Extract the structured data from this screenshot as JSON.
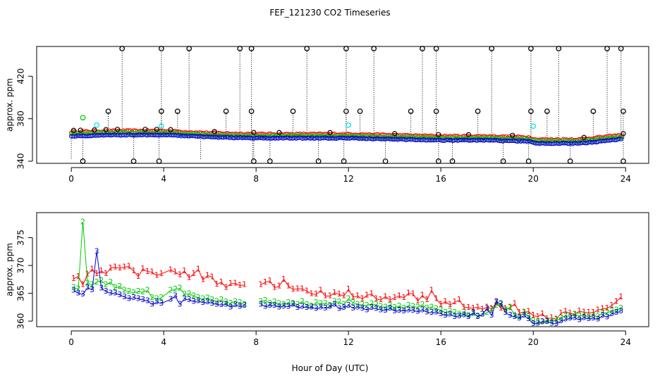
{
  "title": "FEF_121230  CO2 Timeseries",
  "xlabel": "Hour of Day (UTC)",
  "colors": {
    "black": "#000000",
    "red": "#ff0000",
    "green": "#00cc00",
    "blue": "#0000cc",
    "cyan": "#00e5e5",
    "axis": "#000000"
  },
  "chart_data": [
    {
      "type": "scatter",
      "ylabel": "approx. ppm",
      "xlim": [
        -1.5,
        25
      ],
      "ylim": [
        338,
        448
      ],
      "xticks": [
        0,
        4,
        8,
        12,
        16,
        20,
        24
      ],
      "yticks": [
        340,
        380,
        420
      ],
      "ytick_labels": [
        "340",
        "380",
        "420"
      ],
      "black_high_x": [
        2.2,
        3.9,
        5.1,
        7.3,
        7.8,
        10.2,
        11.9,
        13.1,
        15.2,
        15.8,
        18.2,
        19.9,
        21.1,
        23.2,
        23.8
      ],
      "black_mid_x": [
        1.6,
        3.9,
        4.6,
        6.7,
        7.8,
        9.6,
        11.9,
        12.5,
        14.7,
        15.8,
        17.6,
        19.9,
        20.6,
        22.6,
        23.9
      ],
      "black_low_x": [
        0.5,
        2.7,
        3.8,
        7.9,
        8.6,
        10.7,
        11.8,
        13.6,
        15.9,
        16.5,
        18.7,
        19.8,
        21.6,
        23.9
      ],
      "cyan_points": [
        [
          1.1,
          374
        ],
        [
          3.9,
          373
        ],
        [
          12.0,
          374
        ],
        [
          20.0,
          373
        ]
      ],
      "green_points": [
        [
          0.5,
          381
        ]
      ],
      "baseline": {
        "x": [
          0,
          2,
          4,
          6,
          8,
          10,
          12,
          14,
          16,
          18,
          19.8,
          20.1,
          22,
          23.8
        ],
        "y": [
          365,
          366,
          366,
          364,
          363,
          363,
          363,
          362,
          361,
          361,
          360,
          358,
          358,
          362
        ]
      }
    },
    {
      "type": "line",
      "ylabel": "approx. ppm",
      "xlim": [
        -1.5,
        25
      ],
      "ylim": [
        359,
        379.5
      ],
      "xticks": [
        0,
        4,
        8,
        12,
        16,
        20,
        24
      ],
      "yticks": [
        360,
        365,
        370,
        375
      ],
      "ytick_labels": [
        "360",
        "365",
        "370",
        "375"
      ],
      "series": [
        {
          "name": "1",
          "x": [
            0.1,
            0.3,
            0.5,
            0.7,
            0.9,
            1.1,
            1.3,
            1.5,
            1.7,
            1.9,
            2.1,
            2.3,
            2.5,
            2.7,
            2.9,
            3.1,
            3.3,
            3.5,
            3.7,
            3.9,
            4.3,
            4.5,
            4.7,
            4.9,
            5.1,
            5.3,
            5.5,
            5.7,
            5.9,
            6.1,
            6.3,
            6.5,
            6.7,
            6.9,
            7.1,
            7.3,
            7.5,
            8.2,
            8.4,
            8.6,
            8.8,
            9.0,
            9.2,
            9.4,
            9.6,
            9.8,
            10.0,
            10.2,
            10.4,
            10.6,
            10.8,
            11.0,
            11.2,
            11.4,
            11.6,
            11.8,
            12.0,
            12.2,
            12.4,
            12.6,
            12.8,
            13.0,
            13.2,
            13.4,
            13.6,
            13.8,
            14.0,
            14.2,
            14.4,
            14.6,
            14.8,
            15.0,
            15.2,
            15.4,
            15.6,
            15.8,
            16.0,
            16.2,
            16.4,
            16.6,
            16.8,
            17.0,
            17.2,
            17.4,
            17.6,
            17.8,
            18.0,
            18.2,
            18.4,
            18.6,
            18.8,
            19.0,
            19.2,
            19.4,
            19.6,
            19.8,
            20.0,
            20.2,
            20.4,
            20.6,
            20.8,
            21.0,
            21.2,
            21.4,
            21.6,
            21.8,
            22.0,
            22.2,
            22.4,
            22.6,
            22.8,
            23.0,
            23.2,
            23.4,
            23.6,
            23.8
          ],
          "y": [
            367.6,
            368.0,
            366.5,
            368.4,
            369.3,
            368.5,
            369.0,
            368.5,
            369.5,
            369.7,
            369.5,
            369.7,
            369.8,
            369.0,
            368.0,
            369.4,
            368.9,
            368.8,
            368.2,
            368.5,
            369.2,
            368.8,
            368.3,
            369.0,
            367.8,
            368.5,
            369.3,
            367.4,
            368.2,
            367.9,
            366.6,
            367.0,
            366.0,
            366.7,
            366.8,
            366.4,
            366.5,
            366.5,
            367.0,
            367.2,
            366.0,
            366.3,
            367.5,
            366.3,
            365.7,
            365.8,
            365.8,
            365.4,
            364.9,
            364.8,
            365.5,
            364.5,
            364.5,
            365.1,
            364.8,
            364.5,
            365.7,
            364.3,
            364.5,
            364.0,
            364.6,
            364.9,
            364.0,
            363.8,
            364.4,
            363.8,
            364.2,
            364.5,
            364.2,
            365.0,
            364.9,
            363.6,
            364.6,
            363.8,
            365.5,
            364.0,
            363.0,
            363.5,
            362.9,
            363.4,
            363.8,
            362.5,
            362.4,
            362.3,
            362.5,
            362.1,
            362.5,
            362.2,
            363.3,
            362.3,
            362.2,
            362.4,
            363.1,
            361.5,
            361.6,
            361.7,
            361.0,
            360.8,
            361.3,
            360.4,
            360.6,
            360.3,
            361.4,
            361.7,
            361.4,
            361.2,
            361.8,
            361.6,
            361.5,
            361.5,
            362.0,
            362.2,
            362.3,
            362.8,
            363.5,
            364.3
          ]
        },
        {
          "name": "2",
          "x": [
            0.1,
            0.3,
            0.5,
            0.7,
            0.9,
            1.1,
            1.3,
            1.5,
            1.7,
            1.9,
            2.1,
            2.3,
            2.5,
            2.7,
            2.9,
            3.1,
            3.3,
            3.5,
            3.7,
            3.9,
            4.3,
            4.5,
            4.7,
            4.9,
            5.1,
            5.3,
            5.5,
            5.7,
            5.9,
            6.1,
            6.3,
            6.5,
            6.7,
            6.9,
            7.1,
            7.3,
            7.5,
            8.2,
            8.4,
            8.6,
            8.8,
            9.0,
            9.2,
            9.4,
            9.6,
            9.8,
            10.0,
            10.2,
            10.4,
            10.6,
            10.8,
            11.0,
            11.2,
            11.4,
            11.6,
            11.8,
            12.0,
            12.2,
            12.4,
            12.6,
            12.8,
            13.0,
            13.2,
            13.4,
            13.6,
            13.8,
            14.0,
            14.2,
            14.4,
            14.6,
            14.8,
            15.0,
            15.2,
            15.4,
            15.6,
            15.8,
            16.0,
            16.2,
            16.4,
            16.6,
            16.8,
            17.0,
            17.2,
            17.4,
            17.6,
            17.8,
            18.0,
            18.2,
            18.4,
            18.6,
            18.8,
            19.0,
            19.2,
            19.4,
            19.6,
            19.8,
            20.0,
            20.2,
            20.4,
            20.6,
            20.8,
            21.0,
            21.2,
            21.4,
            21.6,
            21.8,
            22.0,
            22.2,
            22.4,
            22.6,
            22.8,
            23.0,
            23.2,
            23.4,
            23.6,
            23.8
          ],
          "y": [
            366.0,
            365.8,
            377.8,
            366.8,
            366.5,
            367.0,
            367.3,
            366.5,
            367.0,
            366.0,
            366.2,
            365.5,
            365.3,
            365.1,
            365.3,
            365.2,
            365.5,
            364.2,
            364.0,
            364.2,
            365.5,
            365.7,
            365.9,
            364.8,
            364.9,
            364.5,
            364.2,
            364.0,
            364.1,
            363.8,
            363.5,
            363.8,
            363.4,
            363.2,
            363.5,
            363.3,
            363.0,
            363.5,
            363.7,
            363.2,
            363.4,
            363.1,
            363.0,
            363.3,
            363.2,
            363.0,
            363.5,
            362.9,
            362.7,
            363.3,
            363.1,
            363.2,
            362.8,
            363.5,
            363.4,
            363.0,
            364.0,
            363.3,
            363.0,
            362.9,
            362.8,
            363.1,
            362.9,
            362.6,
            362.5,
            362.8,
            362.4,
            362.7,
            362.3,
            362.8,
            362.6,
            362.5,
            362.9,
            362.3,
            362.5,
            362.2,
            362.0,
            361.5,
            361.8,
            361.5,
            361.2,
            361.5,
            361.0,
            361.3,
            360.9,
            361.2,
            361.5,
            362.1,
            362.8,
            363.2,
            362.0,
            362.5,
            361.0,
            360.8,
            361.5,
            360.8,
            360.0,
            359.8,
            359.9,
            360.1,
            360.0,
            360.2,
            360.5,
            361.0,
            360.8,
            361.2,
            360.9,
            361.1,
            360.7,
            361.0,
            360.8,
            361.5,
            361.5,
            361.8,
            362.0,
            362.3
          ]
        },
        {
          "name": "3",
          "x": [
            0.1,
            0.3,
            0.5,
            0.7,
            0.9,
            1.1,
            1.3,
            1.5,
            1.7,
            1.9,
            2.1,
            2.3,
            2.5,
            2.7,
            2.9,
            3.1,
            3.3,
            3.5,
            3.7,
            3.9,
            4.3,
            4.5,
            4.7,
            4.9,
            5.1,
            5.3,
            5.5,
            5.7,
            5.9,
            6.1,
            6.3,
            6.5,
            6.7,
            6.9,
            7.1,
            7.3,
            7.5,
            8.2,
            8.4,
            8.6,
            8.8,
            9.0,
            9.2,
            9.4,
            9.6,
            9.8,
            10.0,
            10.2,
            10.4,
            10.6,
            10.8,
            11.0,
            11.2,
            11.4,
            11.6,
            11.8,
            12.0,
            12.2,
            12.4,
            12.6,
            12.8,
            13.0,
            13.2,
            13.4,
            13.6,
            13.8,
            14.0,
            14.2,
            14.4,
            14.6,
            14.8,
            15.0,
            15.2,
            15.4,
            15.6,
            15.8,
            16.0,
            16.2,
            16.4,
            16.6,
            16.8,
            17.0,
            17.2,
            17.4,
            17.6,
            17.8,
            18.0,
            18.2,
            18.4,
            18.6,
            18.8,
            19.0,
            19.2,
            19.4,
            19.6,
            19.8,
            20.0,
            20.2,
            20.4,
            20.6,
            20.8,
            21.0,
            21.2,
            21.4,
            21.6,
            21.8,
            22.0,
            22.2,
            22.4,
            22.6,
            22.8,
            23.0,
            23.2,
            23.4,
            23.6,
            23.8
          ],
          "y": [
            365.5,
            365.0,
            364.8,
            366.0,
            365.6,
            372.5,
            365.9,
            365.3,
            365.0,
            365.0,
            364.7,
            364.3,
            364.0,
            364.2,
            364.0,
            363.8,
            363.6,
            363.0,
            363.4,
            363.2,
            363.9,
            364.5,
            363.0,
            364.0,
            363.8,
            363.5,
            363.6,
            363.3,
            363.4,
            363.2,
            363.0,
            362.9,
            363.0,
            362.5,
            362.9,
            362.6,
            362.8,
            363.0,
            362.6,
            362.8,
            362.8,
            362.5,
            362.7,
            362.6,
            363.0,
            362.4,
            362.6,
            362.4,
            362.5,
            362.2,
            362.5,
            362.3,
            362.6,
            363.0,
            362.2,
            362.4,
            362.8,
            362.3,
            362.5,
            362.3,
            362.0,
            362.4,
            362.2,
            362.0,
            361.9,
            362.3,
            361.8,
            361.9,
            361.8,
            362.0,
            361.9,
            361.7,
            362.0,
            361.6,
            361.5,
            361.6,
            361.3,
            361.0,
            361.2,
            360.8,
            360.9,
            361.1,
            360.8,
            361.5,
            360.8,
            361.2,
            362.2,
            361.0,
            363.5,
            363.0,
            361.5,
            361.0,
            360.8,
            360.5,
            361.0,
            360.4,
            359.5,
            359.6,
            359.8,
            359.9,
            359.6,
            359.5,
            360.0,
            360.3,
            360.5,
            360.6,
            360.2,
            360.6,
            360.4,
            360.5,
            360.3,
            361.0,
            360.7,
            361.3,
            361.5,
            361.8
          ]
        }
      ]
    }
  ]
}
